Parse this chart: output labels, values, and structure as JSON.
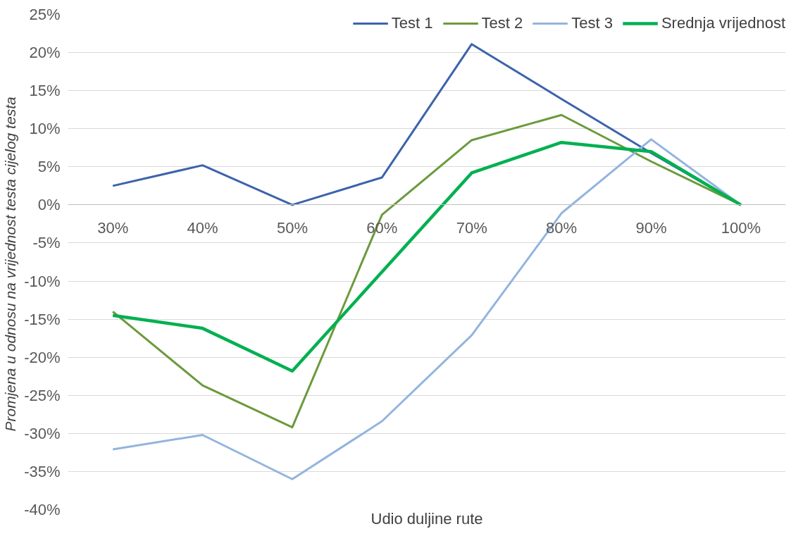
{
  "chart_data": {
    "type": "line",
    "xlabel": "Udio duljine rute",
    "ylabel": "Promjena u odnosu na vrijednost  testa cijelog testa",
    "categories": [
      "30%",
      "40%",
      "50%",
      "60%",
      "70%",
      "80%",
      "90%",
      "100%"
    ],
    "series": [
      {
        "name": "Test 1",
        "color": "#3c63ac",
        "values": [
          2.5,
          5.2,
          0,
          3.6,
          21.1,
          13.9,
          6.8,
          0
        ]
      },
      {
        "name": "Test 2",
        "color": "#6b9a3c",
        "values": [
          -14,
          -23.7,
          -29.2,
          -1.3,
          8.5,
          11.8,
          5.7,
          0
        ]
      },
      {
        "name": "Test 3",
        "color": "#93b4de",
        "values": [
          -32.1,
          -30.2,
          -36,
          -28.4,
          -17.1,
          -1.1,
          8.6,
          0
        ]
      },
      {
        "name": "Srednja vrijednost",
        "color": "#00b050",
        "values": [
          -14.5,
          -16.2,
          -21.8,
          -8.8,
          4.2,
          8.2,
          7.0,
          0
        ]
      }
    ],
    "ylim": [
      -40,
      25
    ],
    "yticks": [
      {
        "value": -40,
        "label": "-40%"
      },
      {
        "value": -35,
        "label": "-35%"
      },
      {
        "value": -30,
        "label": "-30%"
      },
      {
        "value": -25,
        "label": "-25%"
      },
      {
        "value": -20,
        "label": "-20%"
      },
      {
        "value": -15,
        "label": "-15%"
      },
      {
        "value": -10,
        "label": "-10%"
      },
      {
        "value": -5,
        "label": "-5%"
      },
      {
        "value": 0,
        "label": "0%"
      },
      {
        "value": 5,
        "label": "5%"
      },
      {
        "value": 10,
        "label": "10%"
      },
      {
        "value": 15,
        "label": "15%"
      },
      {
        "value": 20,
        "label": "20%"
      },
      {
        "value": 25,
        "label": "25%"
      }
    ],
    "grid": "y",
    "legend": "top right",
    "marker": "none",
    "line_style": "solid"
  }
}
